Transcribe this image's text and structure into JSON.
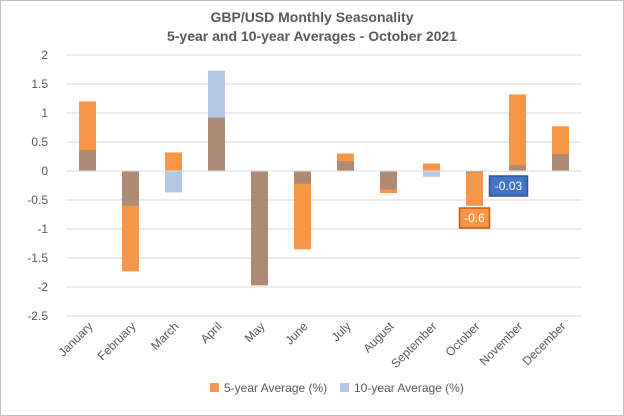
{
  "chart_data": {
    "type": "bar",
    "title": "GBP/USD Monthly Seasonality",
    "subtitle": "5-year and 10-year Averages - October 2021",
    "categories": [
      "January",
      "February",
      "March",
      "April",
      "May",
      "June",
      "July",
      "August",
      "September",
      "October",
      "November",
      "December"
    ],
    "series": [
      {
        "name": "5-year Average (%)",
        "color": "#f79646",
        "values": [
          1.2,
          -1.73,
          0.32,
          0.92,
          -1.97,
          -1.35,
          0.3,
          -0.38,
          0.13,
          -0.6,
          1.32,
          0.77
        ]
      },
      {
        "name": "10-year Average (%)",
        "color": "#b4c7e7",
        "values": [
          0.36,
          -0.6,
          -0.37,
          1.73,
          -1.97,
          -0.22,
          0.17,
          -0.32,
          -0.1,
          -0.03,
          0.1,
          0.29
        ]
      }
    ],
    "overlap_color": "#ad8b75",
    "ylim": [
      -2.5,
      2
    ],
    "yticks": [
      "2",
      "1.5",
      "1",
      "0.5",
      "0",
      "-0.5",
      "-1",
      "-1.5",
      "-2",
      "-2.5"
    ],
    "grid": true,
    "legend_position": "bottom",
    "annotations": [
      {
        "label": "-0.6",
        "category": "October",
        "value": -0.6,
        "color": "#f79646",
        "border": "#c55a11"
      },
      {
        "label": "-0.03",
        "category": "October",
        "value": -0.03,
        "color": "#4472c4",
        "border": "#2f5597"
      }
    ]
  }
}
